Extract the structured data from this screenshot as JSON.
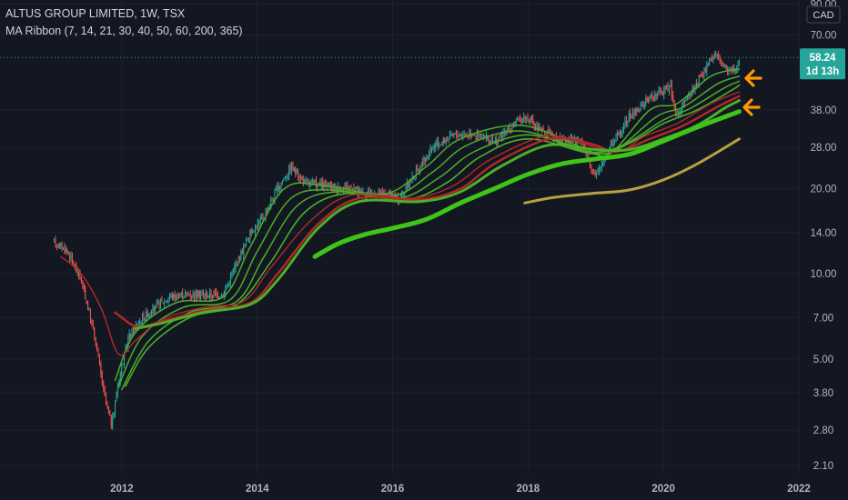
{
  "legend": {
    "symbol_line": "ALTUS GROUP LIMITED, 1W, TSX",
    "indicator_line": "MA Ribbon (7, 14, 21, 30, 40, 50, 60, 200, 365)"
  },
  "currency": "CAD",
  "price_badge": {
    "value": "58.24",
    "countdown": "1d 13h",
    "color": "#26a69a"
  },
  "colors": {
    "background": "#131722",
    "up": "#26a69a",
    "down": "#ef5350",
    "ma_green": "#4caf28",
    "ma_bright": "#3fc41a",
    "ma_red": "#b42828",
    "ma_gold": "#b8a040",
    "arrow": "#ff9800"
  },
  "chart_data": {
    "type": "candlestick",
    "title": "ALTUS GROUP LIMITED, 1W, TSX",
    "y_scale": "log",
    "ylim": [
      1.95,
      93
    ],
    "xlim": [
      2010.2,
      2022.0
    ],
    "y_ticks": [
      "90.00",
      "70.00",
      "58.24",
      "38.00",
      "28.00",
      "20.00",
      "14.00",
      "10.00",
      "7.00",
      "5.00",
      "3.80",
      "2.80",
      "2.10"
    ],
    "x_ticks": [
      "2012",
      "2014",
      "2016",
      "2018",
      "2020",
      "2022"
    ],
    "last_price": 58.24,
    "price_path": [
      [
        2011.0,
        13.0
      ],
      [
        2011.2,
        12.0
      ],
      [
        2011.4,
        9.5
      ],
      [
        2011.6,
        6.0
      ],
      [
        2011.75,
        3.6
      ],
      [
        2011.85,
        2.9
      ],
      [
        2011.95,
        4.2
      ],
      [
        2012.1,
        6.0
      ],
      [
        2012.3,
        7.0
      ],
      [
        2012.5,
        7.6
      ],
      [
        2012.7,
        8.3
      ],
      [
        2013.0,
        8.5
      ],
      [
        2013.3,
        8.4
      ],
      [
        2013.5,
        8.5
      ],
      [
        2013.7,
        11.0
      ],
      [
        2013.9,
        14.0
      ],
      [
        2014.1,
        16.0
      ],
      [
        2014.3,
        20.0
      ],
      [
        2014.5,
        24.0
      ],
      [
        2014.7,
        21.0
      ],
      [
        2015.0,
        20.5
      ],
      [
        2015.3,
        20.0
      ],
      [
        2015.6,
        19.5
      ],
      [
        2015.9,
        19.0
      ],
      [
        2016.1,
        18.5
      ],
      [
        2016.3,
        22.0
      ],
      [
        2016.6,
        28.0
      ],
      [
        2016.9,
        31.0
      ],
      [
        2017.2,
        31.5
      ],
      [
        2017.5,
        29.0
      ],
      [
        2017.8,
        34.0
      ],
      [
        2017.95,
        36.0
      ],
      [
        2018.2,
        32.0
      ],
      [
        2018.5,
        30.0
      ],
      [
        2018.8,
        29.0
      ],
      [
        2019.0,
        22.0
      ],
      [
        2019.2,
        28.0
      ],
      [
        2019.5,
        36.0
      ],
      [
        2019.8,
        42.0
      ],
      [
        2020.1,
        46.0
      ],
      [
        2020.2,
        36.0
      ],
      [
        2020.4,
        44.0
      ],
      [
        2020.6,
        52.0
      ],
      [
        2020.75,
        60.0
      ],
      [
        2020.9,
        54.0
      ],
      [
        2021.05,
        52.0
      ],
      [
        2021.12,
        58.24
      ]
    ],
    "series": [
      {
        "name": "7",
        "color": "#4caf28",
        "values": [
          [
            2011.9,
            4.2
          ],
          [
            2012.2,
            6.2
          ],
          [
            2012.8,
            7.9
          ],
          [
            2013.5,
            8.3
          ],
          [
            2013.9,
            12.5
          ],
          [
            2014.4,
            20.0
          ],
          [
            2015.0,
            20.5
          ],
          [
            2015.9,
            19.2
          ],
          [
            2016.5,
            24.0
          ],
          [
            2017.0,
            30.0
          ],
          [
            2017.9,
            33.5
          ],
          [
            2018.8,
            28.0
          ],
          [
            2019.2,
            26.5
          ],
          [
            2019.8,
            38.0
          ],
          [
            2020.2,
            40.0
          ],
          [
            2020.7,
            50.0
          ],
          [
            2021.12,
            53.0
          ]
        ]
      },
      {
        "name": "14",
        "color": "#4caf28",
        "values": [
          [
            2011.95,
            4.0
          ],
          [
            2012.3,
            6.0
          ],
          [
            2012.9,
            7.6
          ],
          [
            2013.6,
            8.1
          ],
          [
            2014.0,
            12.0
          ],
          [
            2014.5,
            18.5
          ],
          [
            2015.1,
            19.8
          ],
          [
            2016.0,
            18.8
          ],
          [
            2016.6,
            23.0
          ],
          [
            2017.1,
            28.5
          ],
          [
            2017.9,
            32.0
          ],
          [
            2018.9,
            27.0
          ],
          [
            2019.3,
            27.5
          ],
          [
            2019.9,
            36.0
          ],
          [
            2020.3,
            39.0
          ],
          [
            2020.8,
            47.0
          ],
          [
            2021.12,
            50.0
          ]
        ]
      },
      {
        "name": "21",
        "color": "#4caf28",
        "values": [
          [
            2012.0,
            3.9
          ],
          [
            2012.4,
            5.8
          ],
          [
            2013.0,
            7.3
          ],
          [
            2013.7,
            8.0
          ],
          [
            2014.1,
            11.5
          ],
          [
            2014.6,
            17.5
          ],
          [
            2015.2,
            19.5
          ],
          [
            2016.1,
            18.5
          ],
          [
            2016.7,
            22.0
          ],
          [
            2017.2,
            27.0
          ],
          [
            2018.0,
            31.0
          ],
          [
            2018.9,
            27.0
          ],
          [
            2019.4,
            28.5
          ],
          [
            2020.0,
            35.0
          ],
          [
            2020.4,
            38.5
          ],
          [
            2020.9,
            45.5
          ],
          [
            2021.12,
            48.0
          ]
        ]
      },
      {
        "name": "30",
        "color": "#4caf28",
        "values": [
          [
            2012.05,
            4.0
          ],
          [
            2012.4,
            5.5
          ],
          [
            2013.0,
            7.0
          ],
          [
            2013.7,
            7.8
          ],
          [
            2014.2,
            11.0
          ],
          [
            2014.7,
            16.5
          ],
          [
            2015.3,
            19.2
          ],
          [
            2016.2,
            18.3
          ],
          [
            2016.8,
            21.0
          ],
          [
            2017.3,
            26.0
          ],
          [
            2018.0,
            30.0
          ],
          [
            2019.0,
            26.5
          ],
          [
            2019.5,
            29.0
          ],
          [
            2020.0,
            34.0
          ],
          [
            2020.5,
            38.0
          ],
          [
            2021.0,
            44.5
          ],
          [
            2021.12,
            46.5
          ]
        ]
      },
      {
        "name": "40",
        "color": "#b42828",
        "values": [
          [
            2011.1,
            11.5
          ],
          [
            2011.4,
            10.0
          ],
          [
            2011.7,
            7.5
          ],
          [
            2011.95,
            5.2
          ],
          [
            2012.2,
            5.8
          ],
          [
            2012.6,
            6.9
          ],
          [
            2013.2,
            7.6
          ],
          [
            2013.8,
            8.0
          ],
          [
            2014.2,
            10.5
          ],
          [
            2014.8,
            15.5
          ],
          [
            2015.4,
            19.0
          ],
          [
            2016.3,
            18.5
          ],
          [
            2016.9,
            20.5
          ],
          [
            2017.4,
            25.0
          ],
          [
            2018.1,
            30.0
          ],
          [
            2018.5,
            30.5
          ],
          [
            2019.0,
            28.0
          ],
          [
            2019.4,
            27.5
          ],
          [
            2019.7,
            30.5
          ],
          [
            2020.2,
            34.0
          ],
          [
            2020.7,
            40.0
          ],
          [
            2021.12,
            44.0
          ]
        ]
      },
      {
        "name": "50",
        "color": "#b42828",
        "values": [
          [
            2011.9,
            7.3
          ],
          [
            2012.0,
            7.0
          ],
          [
            2012.15,
            6.6
          ],
          [
            2012.3,
            6.5
          ],
          [
            2012.6,
            6.8
          ],
          [
            2013.2,
            7.4
          ],
          [
            2013.9,
            7.9
          ],
          [
            2014.3,
            10.0
          ],
          [
            2014.9,
            15.0
          ],
          [
            2015.5,
            18.5
          ],
          [
            2016.4,
            18.3
          ],
          [
            2017.0,
            20.0
          ],
          [
            2017.5,
            24.5
          ],
          [
            2018.2,
            29.5
          ],
          [
            2018.6,
            30.0
          ],
          [
            2019.0,
            28.5
          ],
          [
            2019.3,
            27.0
          ],
          [
            2019.8,
            30.0
          ],
          [
            2020.3,
            33.5
          ],
          [
            2020.8,
            39.0
          ],
          [
            2021.12,
            42.5
          ]
        ]
      },
      {
        "name": "60",
        "color": "#4caf28",
        "values": [
          [
            2012.2,
            6.4
          ],
          [
            2012.6,
            6.7
          ],
          [
            2013.2,
            7.3
          ],
          [
            2013.9,
            7.8
          ],
          [
            2014.3,
            9.5
          ],
          [
            2014.9,
            14.5
          ],
          [
            2015.5,
            18.0
          ],
          [
            2016.4,
            18.0
          ],
          [
            2017.0,
            19.5
          ],
          [
            2017.6,
            24.0
          ],
          [
            2018.3,
            28.5
          ],
          [
            2019.0,
            27.5
          ],
          [
            2019.5,
            27.5
          ],
          [
            2020.0,
            30.0
          ],
          [
            2020.5,
            33.5
          ],
          [
            2020.9,
            38.5
          ],
          [
            2021.12,
            41.0
          ]
        ]
      },
      {
        "name": "200",
        "color": "#3fc41a",
        "values": [
          [
            2014.85,
            11.5
          ],
          [
            2015.2,
            12.8
          ],
          [
            2015.6,
            13.8
          ],
          [
            2016.0,
            14.5
          ],
          [
            2016.5,
            15.6
          ],
          [
            2017.0,
            17.8
          ],
          [
            2017.5,
            20.0
          ],
          [
            2018.0,
            22.5
          ],
          [
            2018.5,
            24.5
          ],
          [
            2019.0,
            25.5
          ],
          [
            2019.5,
            26.5
          ],
          [
            2020.0,
            29.5
          ],
          [
            2020.5,
            33.0
          ],
          [
            2021.12,
            37.5
          ]
        ]
      },
      {
        "name": "365",
        "color": "#b8a040",
        "values": [
          [
            2017.95,
            17.8
          ],
          [
            2018.3,
            18.5
          ],
          [
            2018.7,
            19.0
          ],
          [
            2019.0,
            19.3
          ],
          [
            2019.5,
            19.8
          ],
          [
            2020.0,
            21.5
          ],
          [
            2020.5,
            24.5
          ],
          [
            2021.12,
            30.0
          ]
        ]
      }
    ]
  }
}
